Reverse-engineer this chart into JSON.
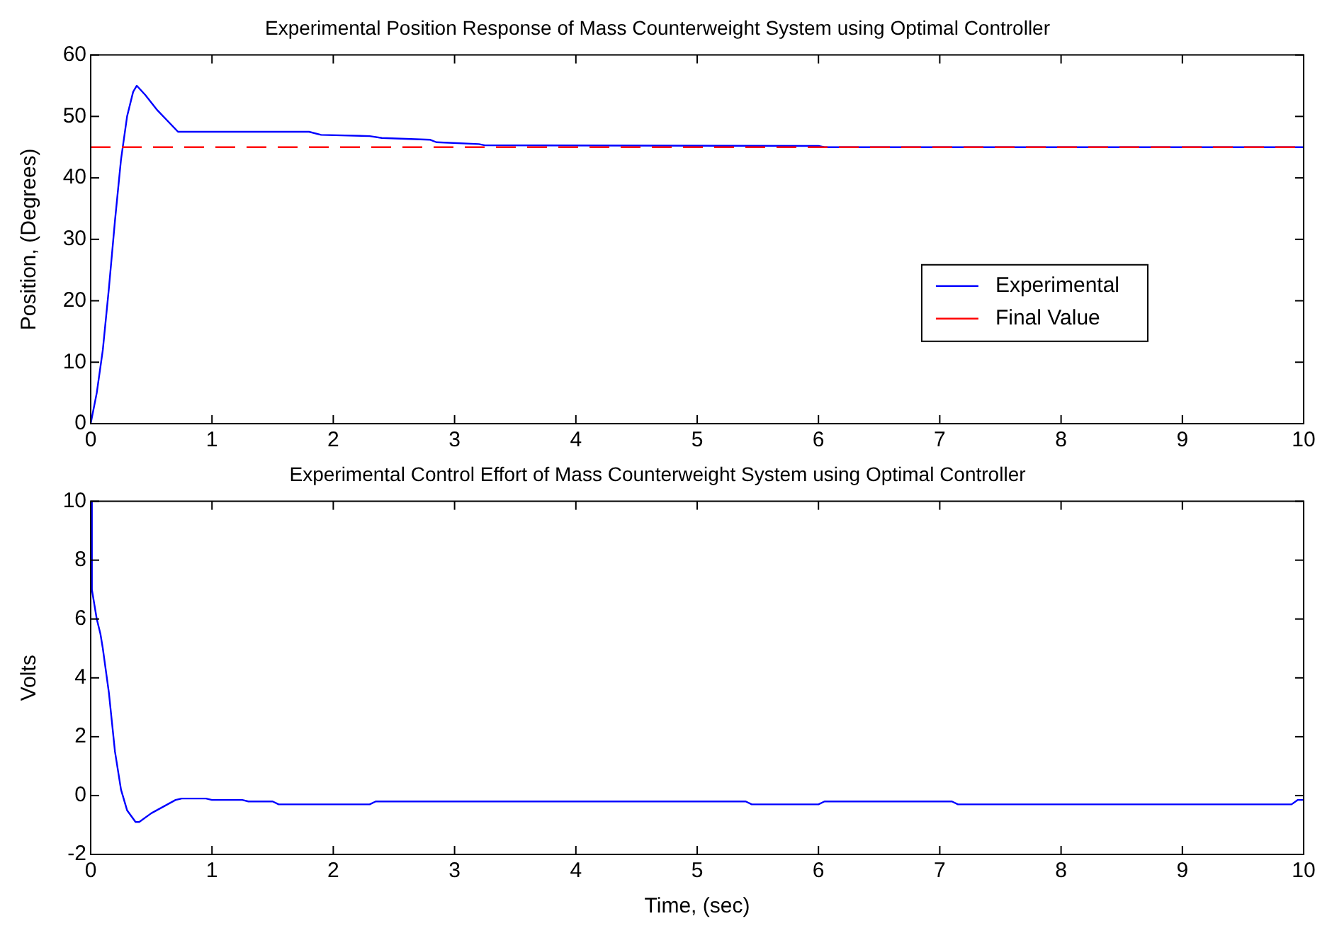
{
  "chart_data": [
    {
      "type": "line",
      "title": "Experimental Position Response of Mass Counterweight System using Optimal Controller",
      "ylabel": "Position, (Degrees)",
      "xlim": [
        0,
        10
      ],
      "xticks": [
        0,
        1,
        2,
        3,
        4,
        5,
        6,
        7,
        8,
        9,
        10
      ],
      "ylim": [
        0,
        60
      ],
      "yticks": [
        0,
        10,
        20,
        30,
        40,
        50,
        60
      ],
      "legend": "right",
      "grid": false,
      "series": [
        {
          "name": "Experimental",
          "color": "#0000ff",
          "line_style": "solid",
          "x": [
            0,
            0.05,
            0.1,
            0.15,
            0.2,
            0.25,
            0.3,
            0.35,
            0.38,
            0.45,
            0.55,
            0.72,
            1.8,
            1.9,
            2.3,
            2.4,
            2.8,
            2.85,
            3.2,
            3.25,
            6,
            6.05,
            10
          ],
          "values": [
            0,
            5,
            12,
            22,
            33,
            43,
            50,
            54,
            55,
            53.5,
            51,
            47.5,
            47.5,
            47,
            46.8,
            46.5,
            46.2,
            45.8,
            45.5,
            45.3,
            45.2,
            45,
            45
          ]
        },
        {
          "name": "Final Value",
          "color": "#ff0000",
          "line_style": "dashed",
          "x": [
            0,
            10
          ],
          "values": [
            45,
            45
          ]
        }
      ]
    },
    {
      "type": "line",
      "title": "Experimental Control Effort of Mass Counterweight System using Optimal Controller",
      "xlabel": "Time, (sec)",
      "ylabel": "Volts",
      "xlim": [
        0,
        10
      ],
      "xticks": [
        0,
        1,
        2,
        3,
        4,
        5,
        6,
        7,
        8,
        9,
        10
      ],
      "ylim": [
        -2,
        10
      ],
      "yticks": [
        -2,
        0,
        2,
        4,
        6,
        8,
        10
      ],
      "legend": false,
      "grid": false,
      "series": [
        {
          "color": "#0000ff",
          "line_style": "solid",
          "x": [
            0,
            0.01,
            0.03,
            0.05,
            0.08,
            0.1,
            0.15,
            0.2,
            0.25,
            0.3,
            0.37,
            0.4,
            0.5,
            0.7,
            0.75,
            0.95,
            1,
            1.25,
            1.3,
            1.5,
            1.55,
            2.3,
            2.35,
            5.4,
            5.45,
            6,
            6.05,
            7.1,
            7.15,
            9.9,
            9.95,
            10
          ],
          "values": [
            10,
            7,
            6.5,
            6,
            5.5,
            5,
            3.5,
            1.5,
            0.2,
            -0.5,
            -0.9,
            -0.9,
            -0.6,
            -0.15,
            -0.1,
            -0.1,
            -0.15,
            -0.15,
            -0.2,
            -0.2,
            -0.3,
            -0.3,
            -0.2,
            -0.2,
            -0.3,
            -0.3,
            -0.2,
            -0.2,
            -0.3,
            -0.3,
            -0.15,
            -0.15
          ]
        }
      ]
    }
  ]
}
